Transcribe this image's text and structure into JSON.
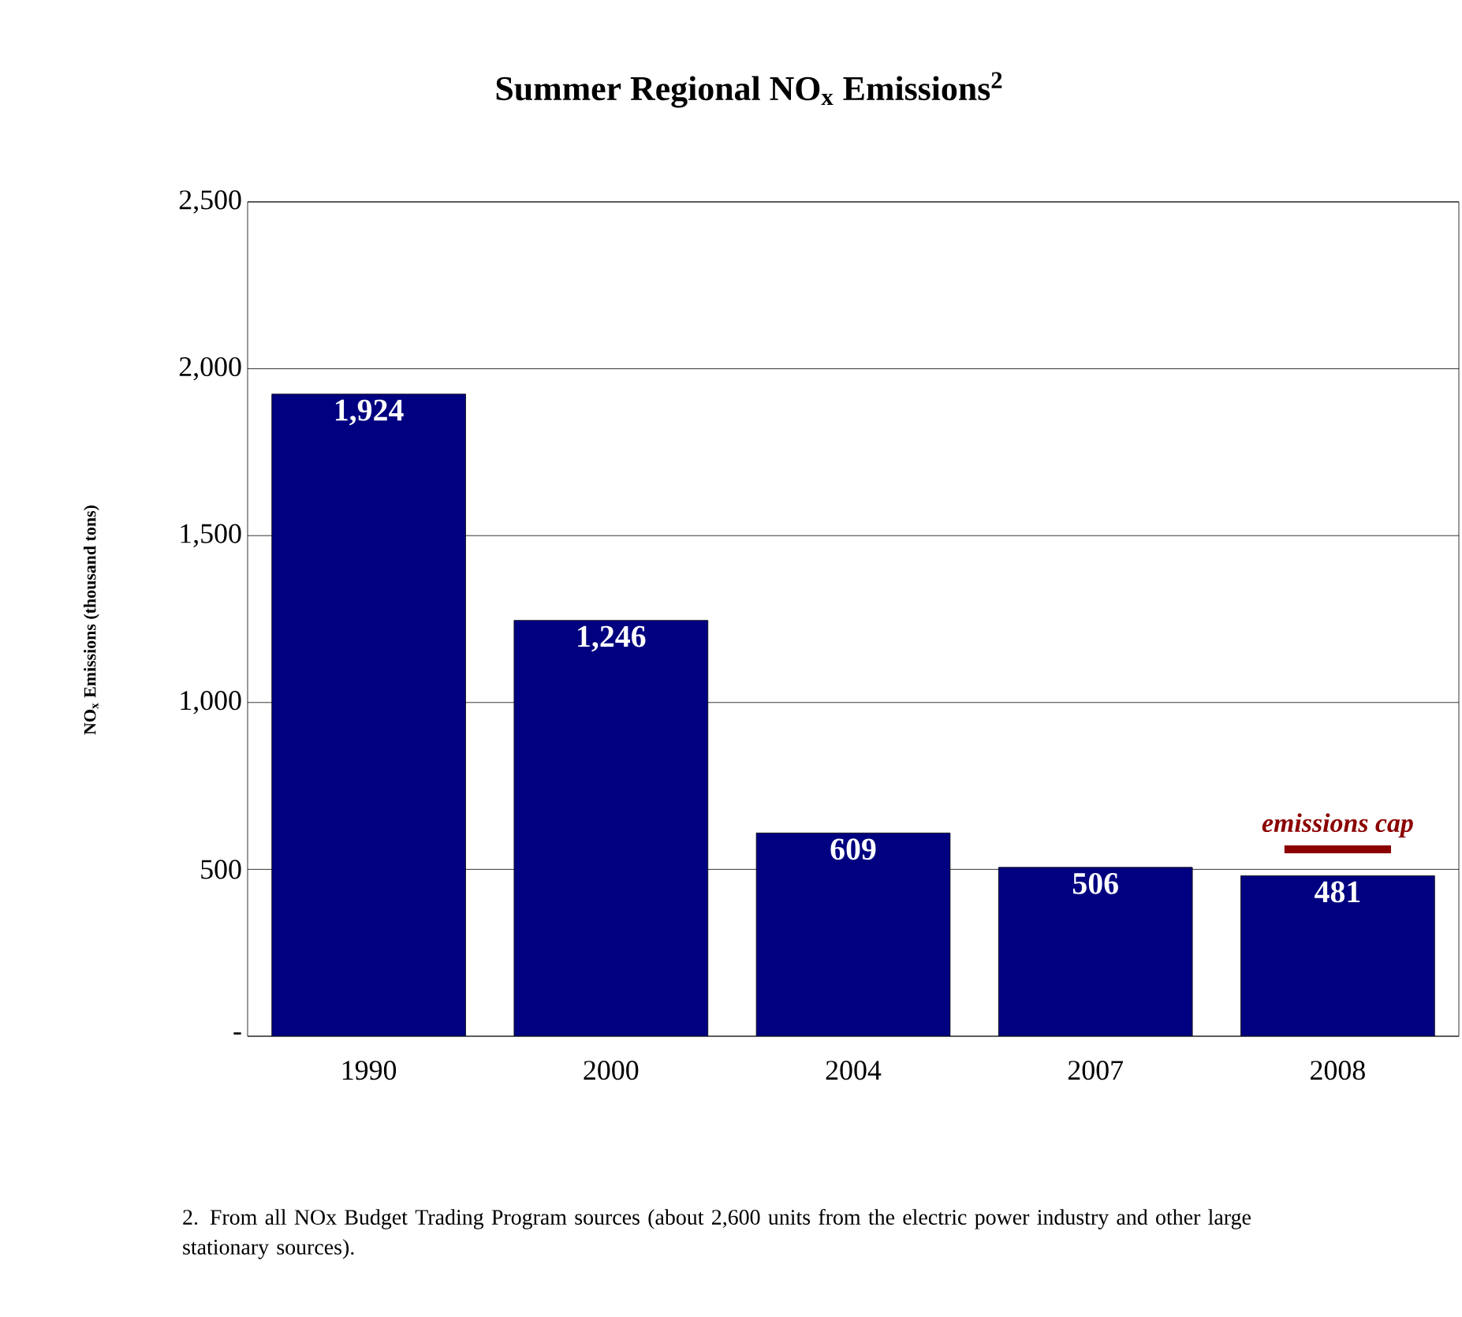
{
  "chart_data": {
    "type": "bar",
    "title": "Summer Regional NO$_{x}$ Emissions$^{2}$",
    "ylabel": "NO$_{x}$ Emissions (thousand tons)",
    "categories": [
      "1990",
      "2000",
      "2004",
      "2007",
      "2008"
    ],
    "series": [
      {
        "color": "#000080",
        "values": [
          1924,
          1246,
          609,
          506,
          481
        ],
        "value_labels": [
          "1,924",
          "1,246",
          "609",
          "506",
          "481"
        ]
      }
    ],
    "ref_lines": [
      {
        "axis": "y",
        "value": 560,
        "label": "emissions cap",
        "color": "#8b0000"
      }
    ],
    "ylim": [
      0,
      2500
    ],
    "yticks": [
      {
        "value": 0,
        "label": "-"
      },
      500,
      {
        "value": 1000,
        "label": "1,000"
      },
      {
        "value": 1500,
        "label": "1,500"
      },
      {
        "value": 2000,
        "label": "2,000"
      },
      {
        "value": 2500,
        "label": "2,500"
      }
    ],
    "grid": "y",
    "annotations": [
      "2. From all NOx Budget Trading Program sources (about 2,600 units from the electric power industry and other large stationary sources)."
    ]
  }
}
